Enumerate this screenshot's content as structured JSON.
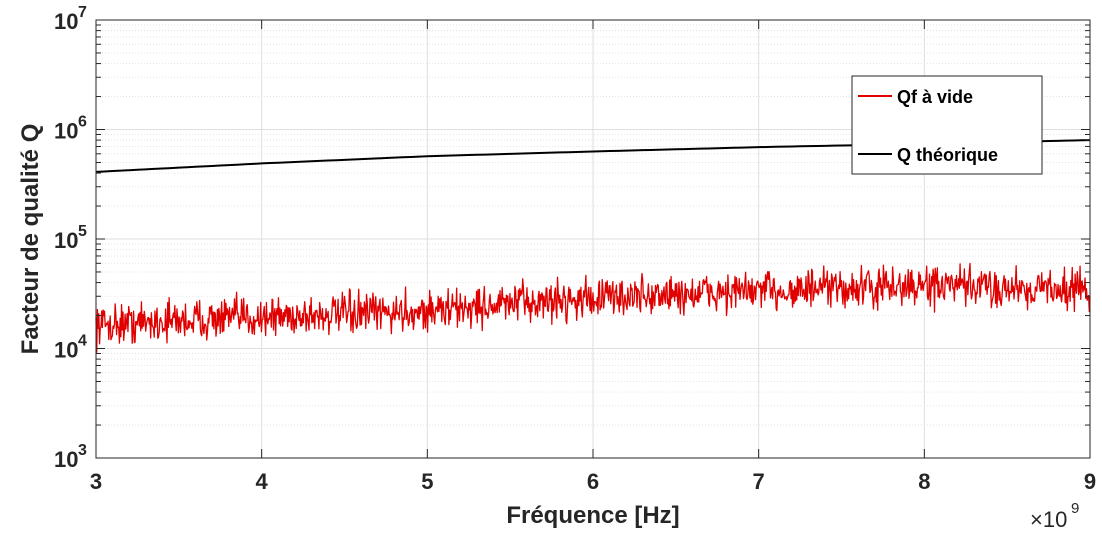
{
  "chart_data": {
    "type": "line",
    "xlabel": "Fréquence [Hz]",
    "ylabel": "Facteur de qualité Q",
    "x_multiplier": "×10",
    "x_multiplier_exponent": "9",
    "xlim": [
      3000000000.0,
      9000000000.0
    ],
    "ylim": [
      1000,
      10000000
    ],
    "yscale": "log",
    "x_ticks": [
      3000000000.0,
      4000000000.0,
      5000000000.0,
      6000000000.0,
      7000000000.0,
      8000000000.0,
      9000000000.0
    ],
    "x_tick_labels": [
      "3",
      "4",
      "5",
      "6",
      "7",
      "8",
      "9"
    ],
    "y_ticks": [
      1000,
      10000,
      100000,
      1000000,
      10000000
    ],
    "y_tick_labels": [
      {
        "base": "10",
        "exp": "3"
      },
      {
        "base": "10",
        "exp": "4"
      },
      {
        "base": "10",
        "exp": "5"
      },
      {
        "base": "10",
        "exp": "6"
      },
      {
        "base": "10",
        "exp": "7"
      }
    ],
    "grid": true,
    "legend_position": "top-right",
    "series": [
      {
        "name": "Qf à vide",
        "color": "#e00000",
        "style": "noisy",
        "x": [
          3000000000.0,
          3500000000.0,
          4000000000.0,
          4500000000.0,
          5000000000.0,
          5500000000.0,
          6000000000.0,
          6500000000.0,
          7000000000.0,
          7500000000.0,
          8000000000.0,
          8500000000.0,
          9000000000.0
        ],
        "values": [
          16500,
          18000,
          19500,
          20500,
          22000,
          25500,
          29000,
          31000,
          33500,
          35000,
          37000,
          36000,
          35000
        ]
      },
      {
        "name": "Q théorique",
        "color": "#000000",
        "style": "smooth",
        "x": [
          3000000000.0,
          4000000000.0,
          5000000000.0,
          6000000000.0,
          7000000000.0,
          8000000000.0,
          9000000000.0
        ],
        "values": [
          410000,
          490000,
          570000,
          630000,
          690000,
          740000,
          800000
        ]
      }
    ]
  }
}
